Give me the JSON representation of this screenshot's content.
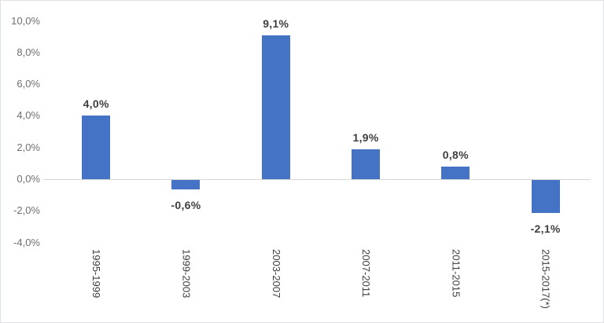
{
  "chart_data": {
    "type": "bar",
    "title": "",
    "xlabel": "",
    "ylabel": "",
    "legend": "none",
    "grid": "off",
    "categories": [
      "1995-1999",
      "1999-2003",
      "2003-2007",
      "2007-2011",
      "2011-2015",
      "2015-2017(*)"
    ],
    "values": [
      4.0,
      -0.6,
      9.1,
      1.9,
      0.8,
      -2.1
    ],
    "value_labels": [
      "4,0%",
      "-0,6%",
      "9,1%",
      "1,9%",
      "0,8%",
      "-2,1%"
    ],
    "yticks": {
      "values": [
        10,
        8,
        6,
        4,
        2,
        0,
        -2,
        -4
      ],
      "labels": [
        "10,0%",
        "8,0%",
        "6,0%",
        "4,0%",
        "2,0%",
        "0,0%",
        "-2,0%",
        "-4,0%"
      ]
    },
    "ylim": [
      -4,
      10
    ],
    "colors": {
      "bar": "#4472C4",
      "axis_line": "#d6d6d6",
      "ytick_text": "#6f6f6f",
      "xtick_text": "#3d3d3d",
      "data_label_text": "#3f3f3f",
      "background": "#ffffff",
      "border": "#dde1e6"
    }
  }
}
